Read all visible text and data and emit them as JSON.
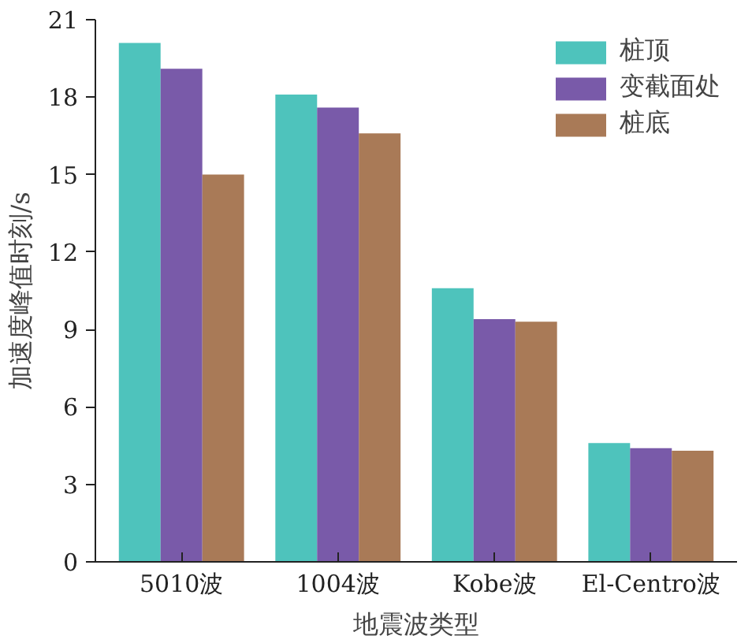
{
  "chart_data": {
    "type": "bar",
    "xlabel": "地震波类型",
    "ylabel": "加速度峰值时刻/s",
    "categories": [
      "5010波",
      "1004波",
      "Kobe波",
      "El-Centro波"
    ],
    "series": [
      {
        "name": "桩顶",
        "color": "#3bbcb5",
        "values": [
          20.1,
          18.1,
          10.6,
          4.6
        ]
      },
      {
        "name": "变截面处",
        "color": "#6a48a0",
        "values": [
          19.1,
          17.6,
          9.4,
          4.4
        ]
      },
      {
        "name": "桩底",
        "color": "#a06c45",
        "values": [
          15.0,
          16.6,
          9.3,
          4.3
        ]
      }
    ],
    "ylim": [
      0,
      21
    ],
    "yticks": [
      0,
      3,
      6,
      9,
      12,
      15,
      18,
      21
    ],
    "grid": false,
    "legend": "top right"
  }
}
